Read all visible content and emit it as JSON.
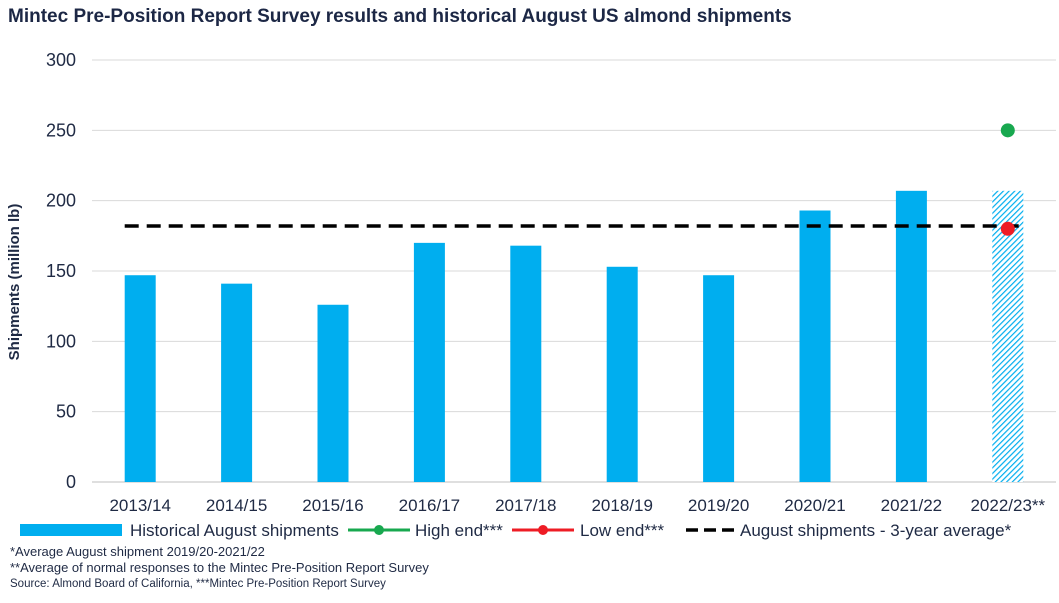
{
  "chart_data": {
    "type": "bar",
    "title": "Mintec Pre-Position Report Survey results and historical August US almond shipments",
    "xlabel": "",
    "ylabel": "Shipments (million lb)",
    "ylim": [
      0,
      300
    ],
    "yticks": [
      0,
      50,
      100,
      150,
      200,
      250,
      300
    ],
    "grid": true,
    "legend_position": "bottom",
    "categories": [
      "2013/14",
      "2014/15",
      "2015/16",
      "2016/17",
      "2017/18",
      "2018/19",
      "2019/20",
      "2020/21",
      "2021/22",
      "2022/23**"
    ],
    "series": [
      {
        "name": "Historical August shipments",
        "type": "bar",
        "color": "#00aeef",
        "values": [
          147,
          141,
          126,
          170,
          168,
          153,
          147,
          193,
          207,
          207
        ],
        "hatched_last": true
      },
      {
        "name": "High end***",
        "type": "point",
        "color": "#18a84f",
        "category": "2022/23**",
        "value": 250
      },
      {
        "name": "Low end***",
        "type": "point",
        "color": "#ee1c25",
        "category": "2022/23**",
        "value": 180
      },
      {
        "name": "August shipments - 3-year average*",
        "type": "line",
        "style": "dashed",
        "color": "#000000",
        "value": 182,
        "from_category": "2013/14",
        "to_category": "2022/23**"
      }
    ]
  },
  "footnotes": [
    "*Average August shipment 2019/20-2021/22",
    "**Average of normal responses to the Mintec Pre-Position Report Survey",
    "Source: Almond Board of California, ***Mintec Pre-Position Report Survey"
  ]
}
